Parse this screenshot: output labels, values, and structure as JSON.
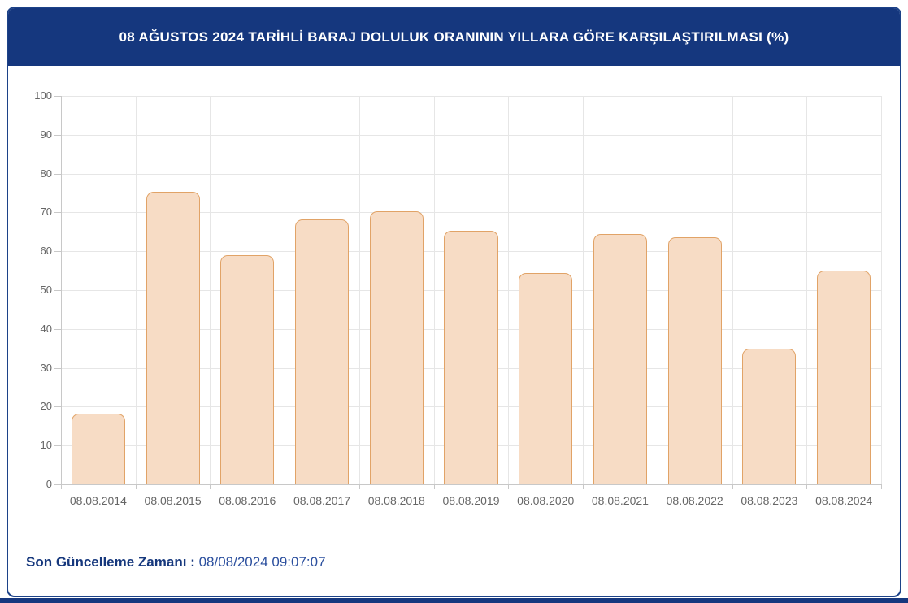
{
  "header": {
    "title": "08 AĞUSTOS 2024 TARİHLİ BARAJ DOLULUK ORANININ YILLARA GÖRE KARŞILAŞTIRILMASI (%)"
  },
  "chart_data": {
    "type": "bar",
    "title": "08 AĞUSTOS 2024 TARİHLİ BARAJ DOLULUK ORANININ YILLARA GÖRE KARŞILAŞTIRILMASI (%)",
    "categories": [
      "08.08.2014",
      "08.08.2015",
      "08.08.2016",
      "08.08.2017",
      "08.08.2018",
      "08.08.2019",
      "08.08.2020",
      "08.08.2021",
      "08.08.2022",
      "08.08.2023",
      "08.08.2024"
    ],
    "values": [
      18.3,
      75.4,
      59.0,
      68.2,
      70.4,
      65.3,
      54.4,
      64.5,
      63.6,
      34.9,
      55.0
    ],
    "xlabel": "",
    "ylabel": "",
    "ylim": [
      0,
      100
    ],
    "ytick_step": 10,
    "grid": true,
    "legend": false,
    "bar_fill": "#f7dcc5",
    "bar_border": "#e1a367"
  },
  "footer": {
    "label": "Son Güncelleme Zamanı :",
    "value": "08/08/2024 09:07:07"
  },
  "colors": {
    "header_bg": "#15377e",
    "card_border": "#1c4288",
    "footer_label": "#16387d",
    "footer_value": "#2b4f9e",
    "grid_line": "#e6e6e6",
    "axis_line": "#c8c8c8",
    "tick_text": "#666666",
    "bottom_strip": "#15377e"
  }
}
